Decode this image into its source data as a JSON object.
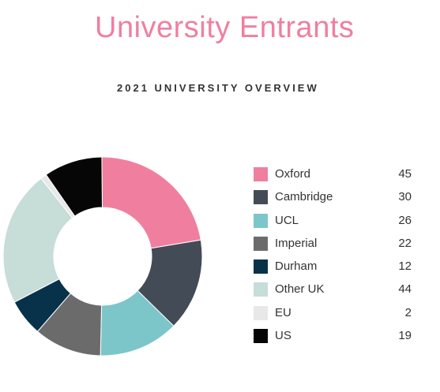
{
  "header": {
    "title": "University Entrants",
    "subtitle": "2021 UNIVERSITY OVERVIEW"
  },
  "chart_data": {
    "type": "pie",
    "variant": "donut",
    "title": "University Entrants",
    "subtitle": "2021 UNIVERSITY OVERVIEW",
    "legend_position": "right",
    "slices": [
      {
        "label": "Oxford",
        "value": 45,
        "color": "#f07f9f"
      },
      {
        "label": "Cambridge",
        "value": 30,
        "color": "#434b56"
      },
      {
        "label": "UCL",
        "value": 26,
        "color": "#7cc6c9"
      },
      {
        "label": "Imperial",
        "value": 22,
        "color": "#6b6b6b"
      },
      {
        "label": "Durham",
        "value": 12,
        "color": "#08314a"
      },
      {
        "label": "Other UK",
        "value": 44,
        "color": "#c6ddd8"
      },
      {
        "label": "EU",
        "value": 2,
        "color": "#e8e8e8"
      },
      {
        "label": "US",
        "value": 19,
        "color": "#060606"
      }
    ]
  }
}
